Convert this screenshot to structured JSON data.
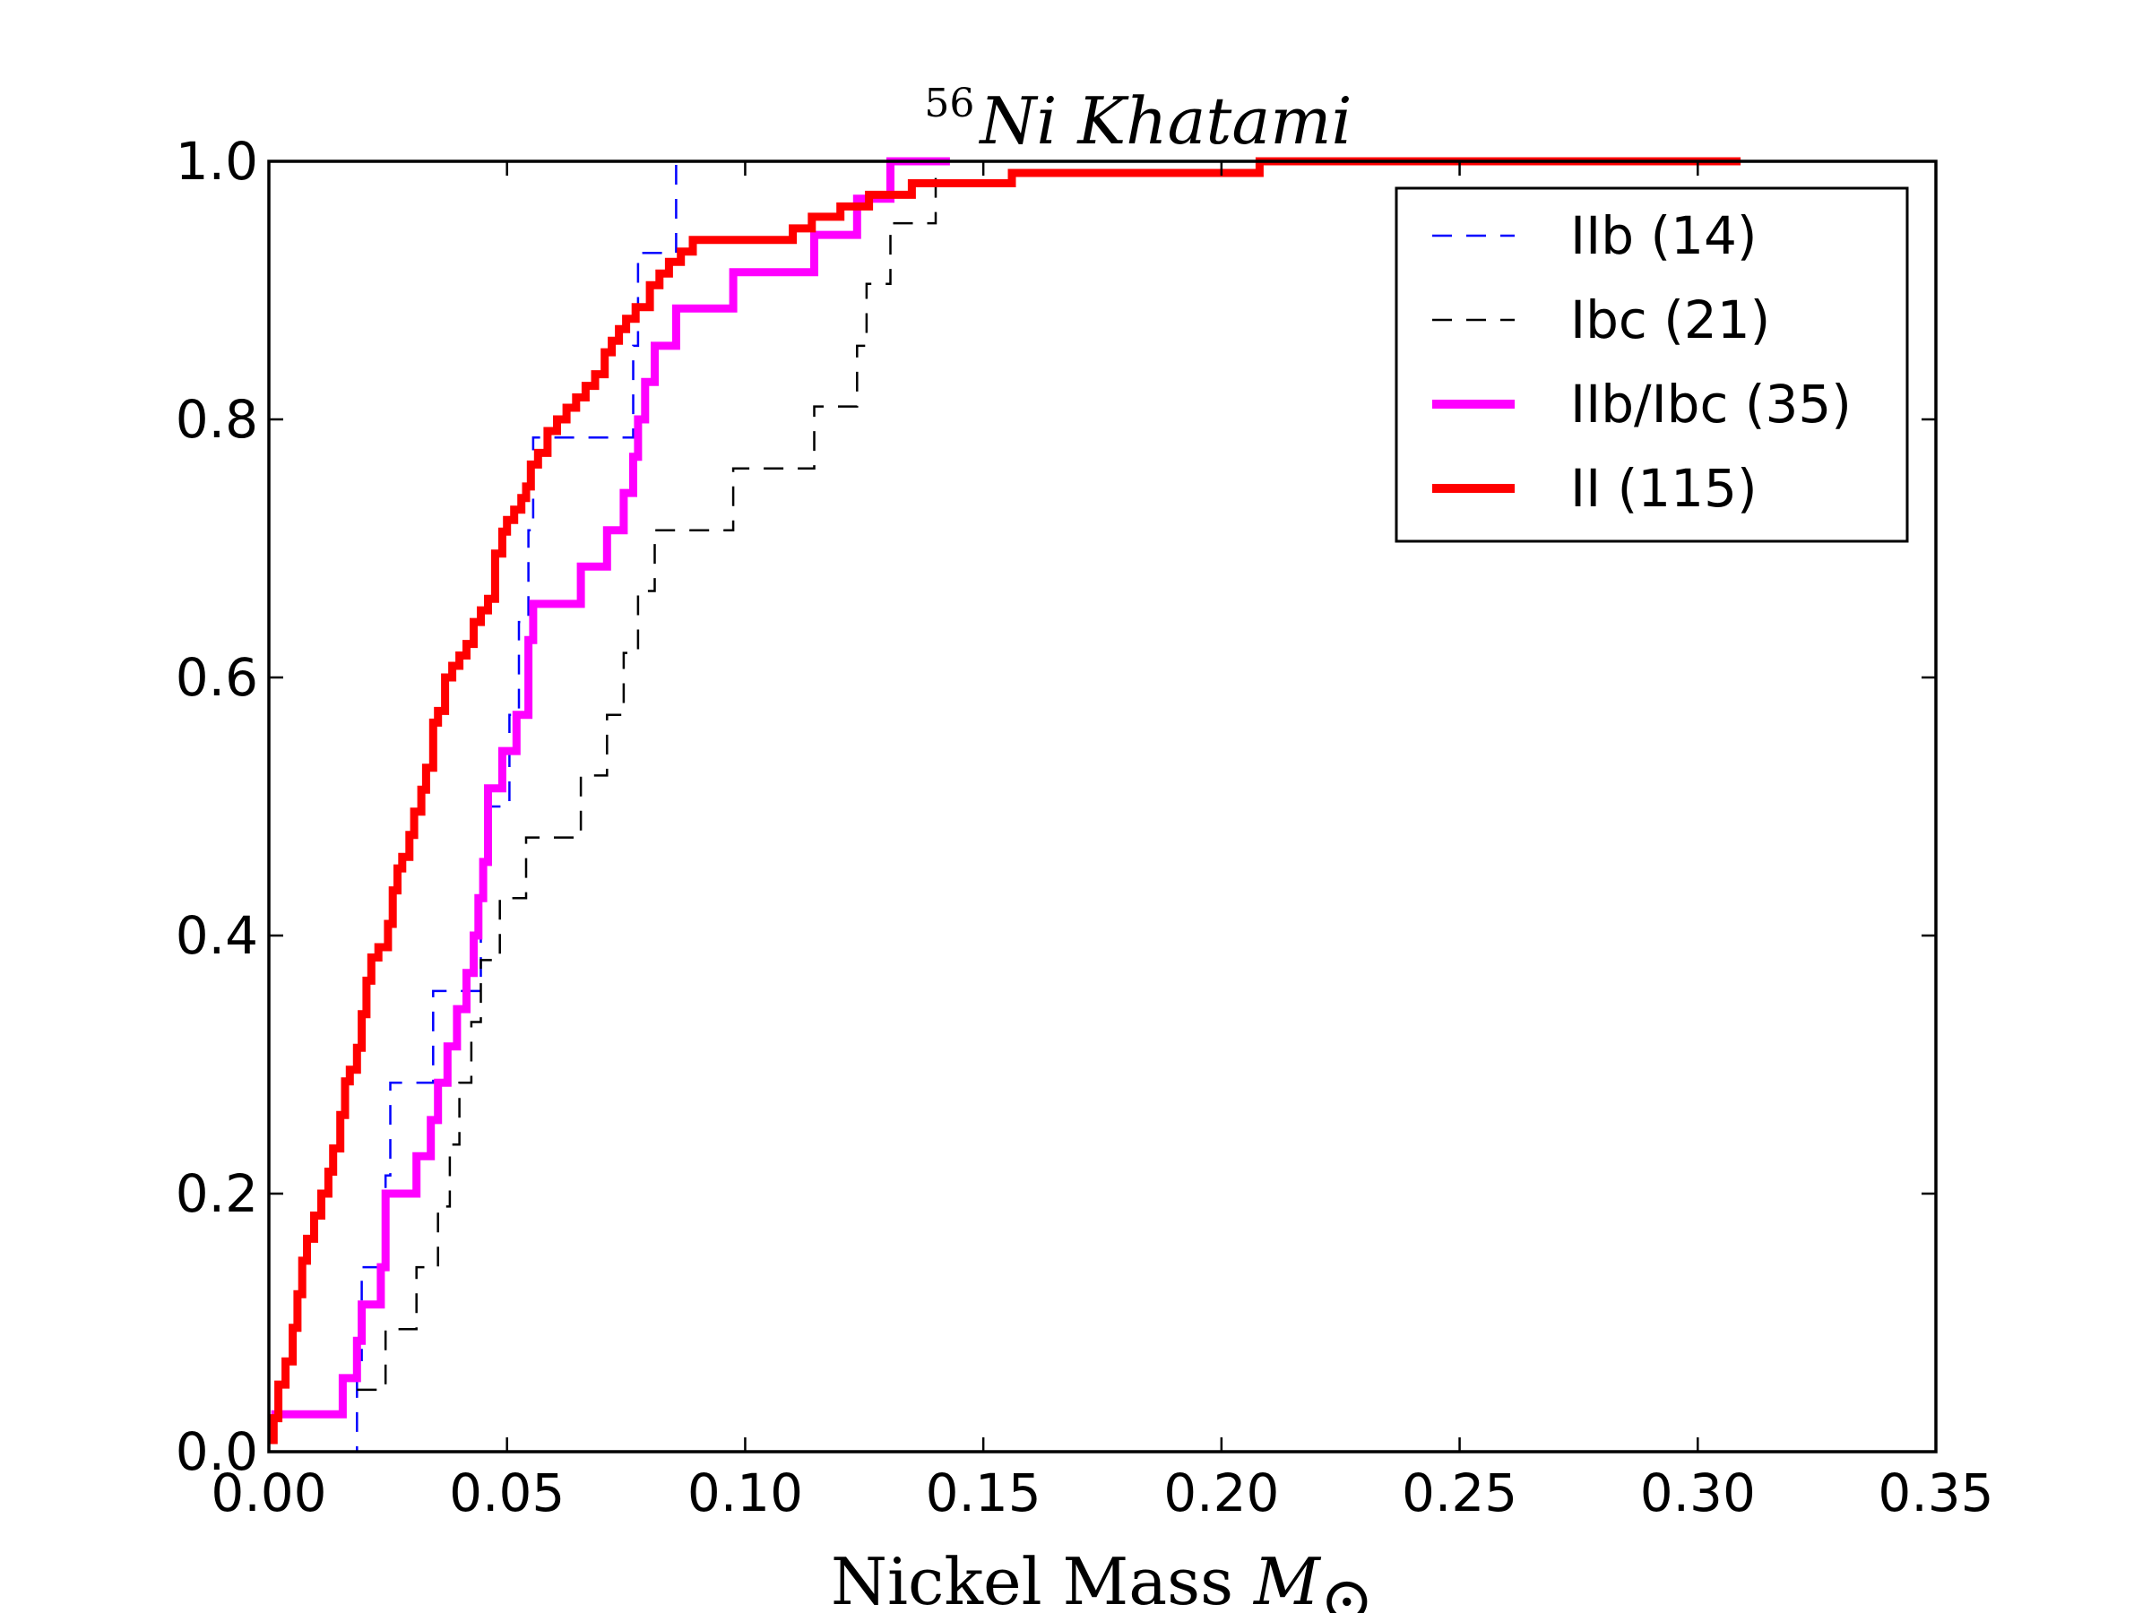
{
  "chart_data": {
    "type": "line",
    "title": {
      "superscript": "56",
      "text": "Ni Khatami"
    },
    "xlabel": {
      "text": "Nickel Mass ",
      "math": "M",
      "sub": "⊙"
    },
    "ylabel": "",
    "xlim": [
      0.0,
      0.35
    ],
    "ylim": [
      0.0,
      1.0
    ],
    "x_ticks": [
      "0.00",
      "0.05",
      "0.10",
      "0.15",
      "0.20",
      "0.25",
      "0.30",
      "0.35"
    ],
    "y_ticks": [
      "0.0",
      "0.2",
      "0.4",
      "0.6",
      "0.8",
      "1.0"
    ],
    "grid": false,
    "legend_position": "top-right",
    "series": [
      {
        "name": "IIb (14)",
        "color": "#0000ff",
        "style": "dashed",
        "x": [
          0.0155,
          0.0185,
          0.0195,
          0.0235,
          0.0245,
          0.0255,
          0.034,
          0.0345,
          0.0365,
          0.0435,
          0.0445,
          0.0455,
          0.0495,
          0.0505,
          0.0525,
          0.0545,
          0.0555,
          0.0575,
          0.0765,
          0.0775,
          0.0785,
          0.0855
        ],
        "y": [
          0.0,
          0.071,
          0.143,
          0.143,
          0.214,
          0.286,
          0.286,
          0.357,
          0.357,
          0.357,
          0.429,
          0.5,
          0.5,
          0.571,
          0.643,
          0.714,
          0.786,
          0.786,
          0.857,
          0.929,
          0.929,
          1.0
        ]
      },
      {
        "name": "Ibc (21)",
        "color": "#000000",
        "style": "dashed",
        "x": [
          0.0185,
          0.0245,
          0.031,
          0.0355,
          0.038,
          0.04,
          0.0425,
          0.0445,
          0.0485,
          0.054,
          0.0655,
          0.071,
          0.0745,
          0.0775,
          0.081,
          0.0975,
          0.1145,
          0.1235,
          0.1255,
          0.1305,
          0.14
        ],
        "y": [
          0.048,
          0.095,
          0.143,
          0.19,
          0.238,
          0.286,
          0.333,
          0.381,
          0.429,
          0.476,
          0.524,
          0.571,
          0.619,
          0.667,
          0.714,
          0.762,
          0.81,
          0.857,
          0.905,
          0.952,
          1.0
        ]
      },
      {
        "name": "IIb/Ibc (35)",
        "color": "#ff00ff",
        "style": "solid",
        "x": [
          0.0005,
          0.0155,
          0.0185,
          0.0195,
          0.0235,
          0.0245,
          0.031,
          0.034,
          0.0355,
          0.0375,
          0.0395,
          0.0415,
          0.043,
          0.044,
          0.045,
          0.046,
          0.049,
          0.052,
          0.0545,
          0.0555,
          0.0655,
          0.071,
          0.0745,
          0.0765,
          0.0775,
          0.079,
          0.081,
          0.0855,
          0.0975,
          0.1145,
          0.1235,
          0.1255,
          0.1295,
          0.1305,
          0.143
        ],
        "y": [
          0.029,
          0.057,
          0.086,
          0.114,
          0.143,
          0.2,
          0.229,
          0.257,
          0.286,
          0.314,
          0.343,
          0.371,
          0.4,
          0.429,
          0.457,
          0.514,
          0.543,
          0.571,
          0.629,
          0.657,
          0.686,
          0.714,
          0.743,
          0.771,
          0.8,
          0.829,
          0.857,
          0.886,
          0.914,
          0.943,
          0.971,
          0.971,
          0.971,
          1.0,
          1.0
        ]
      },
      {
        "name": "II (115)",
        "color": "#ff0000",
        "style": "solid",
        "x": [
          0.0,
          0.001,
          0.002,
          0.0035,
          0.005,
          0.006,
          0.007,
          0.008,
          0.0095,
          0.011,
          0.0125,
          0.0135,
          0.015,
          0.016,
          0.017,
          0.0185,
          0.0195,
          0.0205,
          0.0215,
          0.023,
          0.025,
          0.026,
          0.027,
          0.028,
          0.0295,
          0.0305,
          0.032,
          0.033,
          0.0345,
          0.0355,
          0.037,
          0.0385,
          0.04,
          0.0415,
          0.043,
          0.0445,
          0.046,
          0.0475,
          0.049,
          0.05,
          0.0515,
          0.053,
          0.054,
          0.055,
          0.0565,
          0.0585,
          0.0605,
          0.0625,
          0.0645,
          0.0665,
          0.0685,
          0.0705,
          0.072,
          0.0735,
          0.075,
          0.077,
          0.08,
          0.082,
          0.084,
          0.0865,
          0.089,
          0.093,
          0.11,
          0.114,
          0.116,
          0.12,
          0.126,
          0.13,
          0.135,
          0.142,
          0.156,
          0.17,
          0.208,
          0.225,
          0.309
        ],
        "y": [
          0.009,
          0.026,
          0.052,
          0.07,
          0.096,
          0.122,
          0.148,
          0.165,
          0.183,
          0.2,
          0.217,
          0.235,
          0.261,
          0.287,
          0.296,
          0.313,
          0.339,
          0.365,
          0.383,
          0.391,
          0.409,
          0.435,
          0.452,
          0.461,
          0.478,
          0.496,
          0.513,
          0.53,
          0.565,
          0.574,
          0.6,
          0.609,
          0.617,
          0.626,
          0.643,
          0.652,
          0.661,
          0.696,
          0.713,
          0.722,
          0.73,
          0.739,
          0.748,
          0.765,
          0.774,
          0.791,
          0.8,
          0.809,
          0.817,
          0.826,
          0.835,
          0.852,
          0.861,
          0.87,
          0.878,
          0.887,
          0.904,
          0.913,
          0.922,
          0.93,
          0.939,
          0.939,
          0.948,
          0.957,
          0.957,
          0.965,
          0.974,
          0.974,
          0.983,
          0.983,
          0.991,
          0.991,
          1.0,
          1.0,
          1.0
        ]
      }
    ]
  }
}
